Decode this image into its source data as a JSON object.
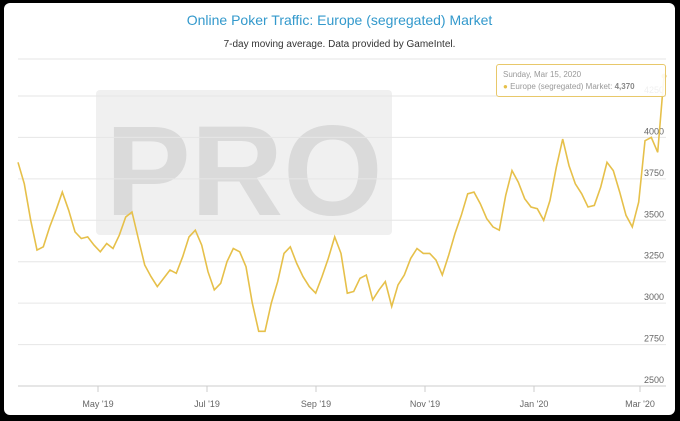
{
  "chart_data": {
    "type": "line",
    "title": "Online Poker Traffic: Europe (segregated) Market",
    "subtitle": "7-day moving average. Data provided by GameIntel.",
    "watermark": "PRO",
    "x_tick_labels": [
      "May '19",
      "Jul '19",
      "Sep '19",
      "Nov '19",
      "Jan '20",
      "Mar '20"
    ],
    "y_tick_labels": [
      "2500",
      "2750",
      "3000",
      "3250",
      "3500",
      "3750",
      "4000",
      "4250"
    ],
    "ylim": [
      2500,
      4400
    ],
    "grid": true,
    "line_color": "#e6c04a",
    "series": [
      {
        "values": [
          3850,
          3720,
          3500,
          3320,
          3340,
          3460,
          3560,
          3670,
          3560,
          3430,
          3390,
          3400,
          3350,
          3310,
          3360,
          3330,
          3410,
          3520,
          3550,
          3390,
          3230,
          3160,
          3100,
          3150,
          3200,
          3180,
          3280,
          3400,
          3440,
          3350,
          3190,
          3080,
          3120,
          3250,
          3330,
          3310,
          3220,
          3000,
          2830,
          2830,
          3000,
          3130,
          3300,
          3340,
          3240,
          3160,
          3100,
          3060,
          3160,
          3270,
          3400,
          3300,
          3060,
          3070,
          3150,
          3170,
          3020,
          3080,
          3130,
          2980,
          3110,
          3170,
          3270,
          3330,
          3300,
          3300,
          3260,
          3170,
          3290,
          3420,
          3530,
          3660,
          3670,
          3600,
          3510,
          3460,
          3440,
          3650,
          3800,
          3730,
          3630,
          3580,
          3570,
          3500,
          3620,
          3820,
          3990,
          3830,
          3720,
          3660,
          3580,
          3590,
          3700,
          3850,
          3800,
          3670,
          3530,
          3460,
          3610,
          3980,
          4000,
          3910,
          4370
        ]
      }
    ],
    "tooltip": {
      "date": "Sunday, Mar 15, 2020",
      "series_name": "Europe (segregated) Market",
      "value": "4,370"
    }
  }
}
